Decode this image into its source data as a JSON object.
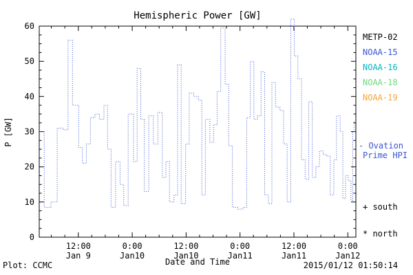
{
  "title": "Hemispheric Power [GW]",
  "ylabel": "P [GW]",
  "xlabel": "Date and Time",
  "footer": {
    "left": "Plot: CCMC",
    "right": "2015/01/12 01:50:14"
  },
  "legend": {
    "satellites": [
      {
        "label": "METP-02",
        "color": "#000000"
      },
      {
        "label": "NOAA-15",
        "color": "#3a55d1"
      },
      {
        "label": "NOAA-16",
        "color": "#00b7c3"
      },
      {
        "label": "NOAA-18",
        "color": "#6fd87f"
      },
      {
        "label": "NOAA-19",
        "color": "#f5a43b"
      }
    ],
    "ovation": {
      "line1": "- Ovation",
      "line2": "Prime HPI",
      "color": "#3a55d1"
    },
    "markers": [
      {
        "label": "+ south",
        "color": "#000000"
      },
      {
        "label": "* north",
        "color": "#000000"
      }
    ]
  },
  "chart_data": {
    "type": "line",
    "step": true,
    "line_style": "dotted",
    "color": "#3a55d1",
    "title": "Hemispheric Power [GW]",
    "xlabel": "Date and Time",
    "ylabel": "P [GW]",
    "ylim": [
      0,
      60
    ],
    "yticks": [
      0,
      10,
      20,
      30,
      40,
      50,
      60
    ],
    "y_minor_step": 2.5,
    "xlim_hours": [
      3.3,
      73.8
    ],
    "x_minor_step": 3,
    "xticks": [
      {
        "hour": 12,
        "time": "12:00",
        "date": "Jan 9"
      },
      {
        "hour": 24,
        "time": "0:00",
        "date": "Jan10"
      },
      {
        "hour": 36,
        "time": "12:00",
        "date": "Jan10"
      },
      {
        "hour": 48,
        "time": "0:00",
        "date": "Jan11"
      },
      {
        "hour": 60,
        "time": "12:00",
        "date": "Jan11"
      },
      {
        "hour": 72,
        "time": "0:00",
        "date": "Jan12"
      }
    ],
    "x_hours": [
      3.4,
      4.4,
      5.9,
      7.3,
      8.7,
      9.7,
      10.7,
      12.1,
      12.9,
      13.8,
      14.7,
      15.7,
      16.7,
      17.7,
      18.5,
      19.3,
      20.3,
      21.3,
      22.1,
      23.1,
      24.3,
      25.1,
      25.9,
      26.7,
      27.7,
      28.7,
      29.7,
      30.7,
      31.5,
      32.3,
      33.3,
      34.1,
      34.9,
      35.9,
      36.7,
      37.7,
      38.7,
      39.5,
      40.3,
      41.3,
      42.1,
      42.9,
      43.7,
      44.7,
      45.5,
      46.3,
      47.5,
      48.7,
      49.5,
      50.3,
      51.1,
      51.9,
      52.7,
      53.5,
      54.3,
      55.1,
      55.9,
      56.9,
      57.7,
      58.5,
      59.3,
      60.1,
      60.9,
      61.7,
      62.5,
      63.3,
      64.1,
      64.9,
      65.7,
      66.5,
      67.3,
      68.1,
      68.9,
      69.5,
      70.3,
      70.9,
      71.5,
      72.1,
      72.7,
      73.1,
      73.4
    ],
    "values": [
      30,
      8.5,
      10,
      31,
      30.5,
      56,
      37.5,
      25.5,
      21,
      26.5,
      34,
      35,
      33.5,
      37.5,
      25,
      8.5,
      21.5,
      15,
      9,
      35,
      21.5,
      48,
      33.5,
      13,
      34.5,
      26.5,
      35.5,
      17,
      21.5,
      10,
      12,
      49,
      9.5,
      26.5,
      41,
      40,
      39,
      12,
      33.5,
      27,
      32,
      41.5,
      59.5,
      43.5,
      26,
      8.5,
      8,
      8.5,
      34,
      50,
      33.5,
      34.5,
      47,
      12,
      9.5,
      44,
      37,
      36,
      26.5,
      10,
      62,
      51.5,
      45,
      22,
      16.5,
      38.5,
      17,
      20,
      24.5,
      23.5,
      23,
      12,
      22,
      34.5,
      30,
      11,
      17.5,
      16,
      10.5,
      30,
      33
    ]
  }
}
